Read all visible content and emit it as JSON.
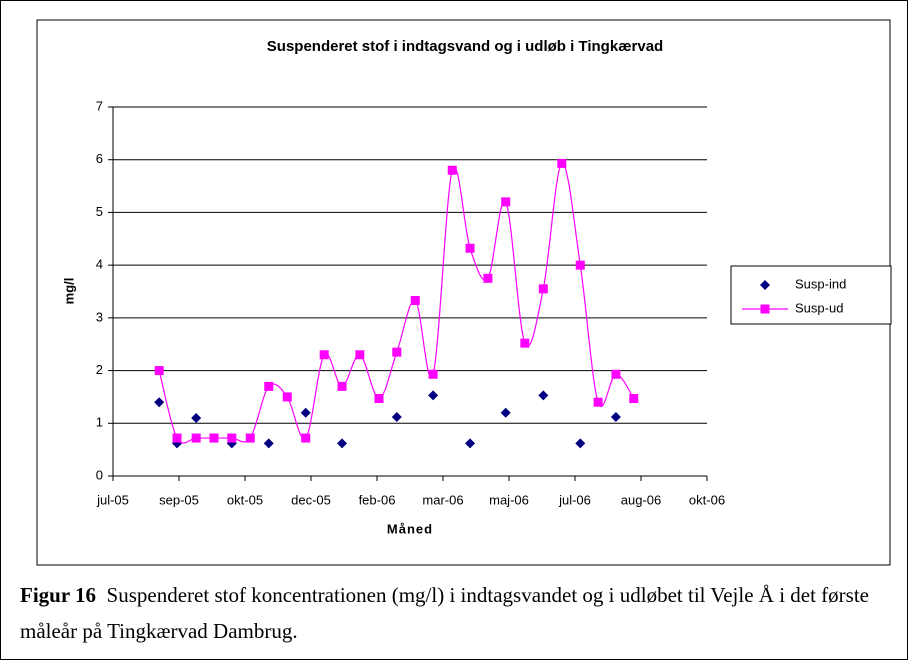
{
  "chart_data": {
    "type": "line",
    "title": "Suspenderet stof i indtagsvand og i udløb i Tingkærvad",
    "xlabel": "Måned",
    "ylabel": "mg/l",
    "xlim": [
      0,
      9
    ],
    "xticks": [
      {
        "value": 0,
        "label": "jul-05"
      },
      {
        "value": 1,
        "label": "sep-05"
      },
      {
        "value": 2,
        "label": "okt-05"
      },
      {
        "value": 3,
        "label": "dec-05"
      },
      {
        "value": 4,
        "label": "feb-06"
      },
      {
        "value": 5,
        "label": "mar-06"
      },
      {
        "value": 6,
        "label": "maj-06"
      },
      {
        "value": 7,
        "label": "jul-06"
      },
      {
        "value": 8,
        "label": "aug-06"
      },
      {
        "value": 9,
        "label": "okt-06"
      }
    ],
    "ylim": [
      0,
      7
    ],
    "yticks": [
      0,
      1,
      2,
      3,
      4,
      5,
      6,
      7
    ],
    "grid": true,
    "legend": "right",
    "series": [
      {
        "name": "Susp-ind",
        "color": "#000080",
        "marker": "diamond",
        "line": false,
        "x": [
          0.7,
          0.97,
          1.26,
          1.8,
          2.36,
          2.92,
          3.47,
          4.3,
          4.85,
          5.41,
          5.95,
          6.52,
          7.08,
          7.62
        ],
        "values": [
          1.4,
          0.62,
          1.1,
          0.62,
          0.62,
          1.2,
          0.62,
          1.12,
          1.53,
          0.62,
          1.2,
          1.53,
          0.62,
          1.12
        ]
      },
      {
        "name": "Susp-ud",
        "color": "#ff00ff",
        "marker": "square",
        "line": true,
        "x": [
          0.7,
          0.97,
          1.26,
          1.53,
          1.8,
          2.08,
          2.36,
          2.64,
          2.92,
          3.2,
          3.47,
          3.74,
          4.03,
          4.3,
          4.58,
          4.85,
          5.14,
          5.41,
          5.68,
          5.95,
          6.24,
          6.52,
          6.8,
          7.08,
          7.35,
          7.62,
          7.89
        ],
        "values": [
          2.0,
          0.72,
          0.72,
          0.72,
          0.72,
          0.72,
          1.7,
          1.5,
          0.72,
          2.3,
          1.7,
          2.3,
          1.47,
          2.35,
          3.33,
          1.93,
          5.8,
          4.32,
          3.75,
          5.2,
          2.52,
          3.55,
          5.93,
          4.0,
          1.4,
          1.93,
          1.47
        ]
      }
    ]
  },
  "caption": {
    "label": "Figur 16",
    "text": "Suspenderet stof koncentrationen (mg/l) i indtagsvandet og i udløbet til Vejle Å i det første måleår på Tingkærvad Dambrug."
  }
}
